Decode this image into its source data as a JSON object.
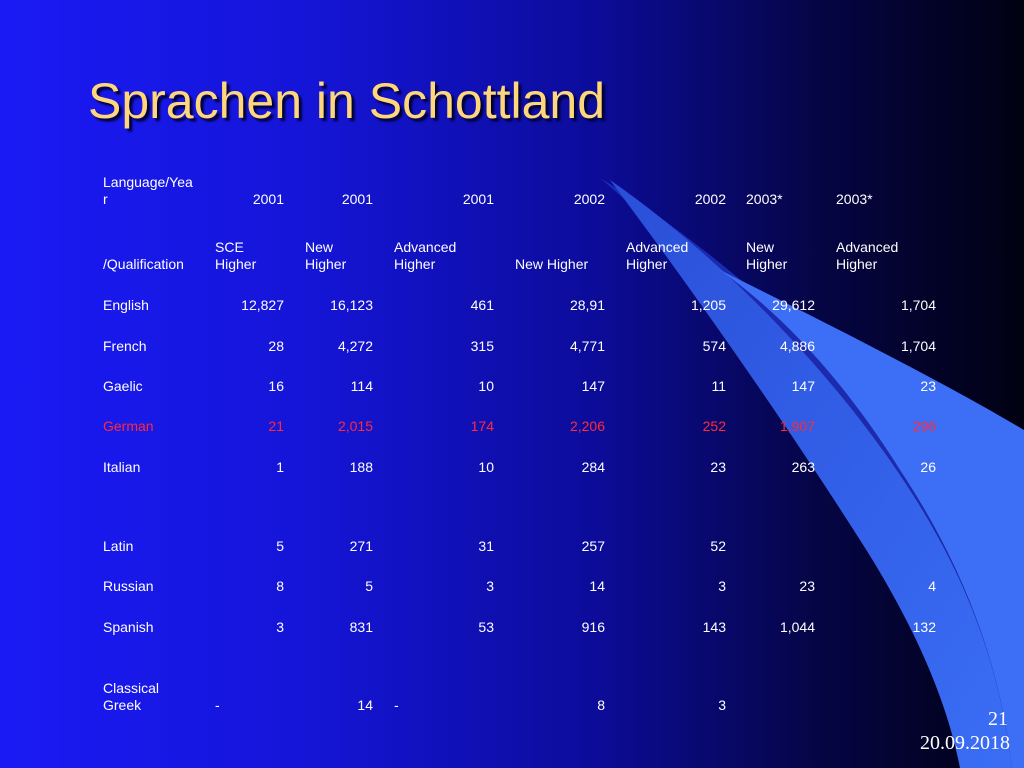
{
  "title": "Sprachen in Schottland",
  "header": {
    "year_label": [
      "Language/Yea",
      "r"
    ],
    "years": [
      "2001",
      "2001",
      "2001",
      "2002",
      "2002",
      "2003*",
      "2003*"
    ],
    "qual_label": "/Qualification",
    "qualifications": [
      [
        "SCE",
        "Higher"
      ],
      [
        "New",
        "Higher"
      ],
      [
        "Advanced",
        "Higher"
      ],
      [
        "",
        "New Higher"
      ],
      [
        "Advanced",
        "Higher"
      ],
      [
        "New",
        "Higher"
      ],
      [
        "Advanced",
        "Higher"
      ]
    ]
  },
  "rows": [
    {
      "language": [
        "English"
      ],
      "values": [
        "12,827",
        "16,123",
        "461",
        "28,91",
        "1,205",
        "29,612",
        "1,704"
      ],
      "highlight": false
    },
    {
      "language": [
        "French"
      ],
      "values": [
        "28",
        "4,272",
        "315",
        "4,771",
        "574",
        "4,886",
        "1,704"
      ],
      "highlight": false
    },
    {
      "language": [
        "Gaelic"
      ],
      "values": [
        "16",
        "114",
        "10",
        "147",
        "11",
        "147",
        "23"
      ],
      "highlight": false
    },
    {
      "language": [
        "German"
      ],
      "values": [
        "21",
        "2,015",
        "174",
        "2,206",
        "252",
        "1,907",
        "296"
      ],
      "highlight": true
    },
    {
      "language": [
        "Italian"
      ],
      "values": [
        "1",
        "188",
        "10",
        "284",
        "23",
        "263",
        "26"
      ],
      "highlight": false
    },
    {
      "language": [
        "Latin"
      ],
      "values": [
        "5",
        "271",
        "31",
        "257",
        "52",
        "",
        ""
      ],
      "highlight": false
    },
    {
      "language": [
        "Russian"
      ],
      "values": [
        "8",
        "5",
        "3",
        "14",
        "3",
        "23",
        "4"
      ],
      "highlight": false
    },
    {
      "language": [
        "Spanish"
      ],
      "values": [
        "3",
        "831",
        "53",
        "916",
        "143",
        "1,044",
        "132"
      ],
      "highlight": false
    },
    {
      "language": [
        "Classical",
        "Greek"
      ],
      "values": [
        "-",
        "14",
        "-",
        "8",
        "3",
        "",
        ""
      ],
      "highlight": false
    }
  ],
  "footer": {
    "page_number": "21",
    "date": "20.09.2018"
  },
  "colors": {
    "title": "#ffd77a",
    "text": "#ffffff",
    "highlight": "#ff2a3a"
  }
}
